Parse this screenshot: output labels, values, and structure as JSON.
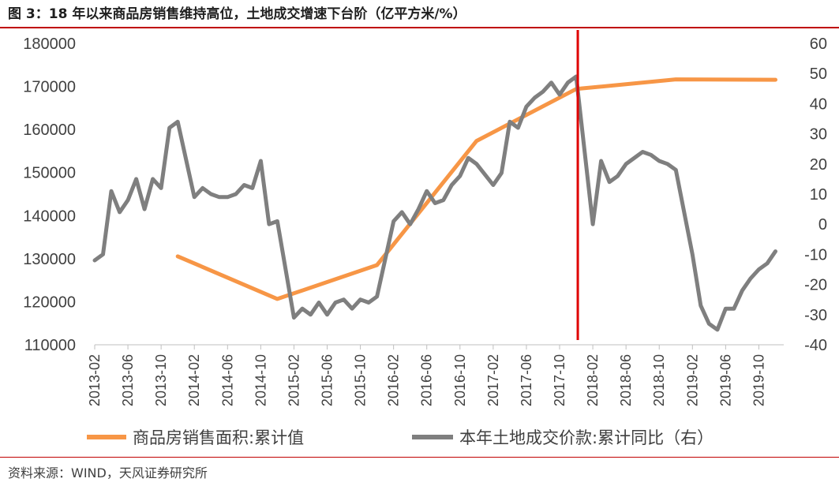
{
  "title": "图 3：18 年以来商品房销售维持高位，土地成交增速下台阶（亿平方米/%）",
  "source": "资料来源：WIND，天风证券研究所",
  "colors": {
    "area": "#f79646",
    "land": "#7f7f7f",
    "marker": "#e00000",
    "rule": "#c00000"
  },
  "chart_data": {
    "type": "line",
    "x_tick_labels": [
      "2013-02",
      "2013-06",
      "2013-10",
      "2014-02",
      "2014-06",
      "2014-10",
      "2015-02",
      "2015-06",
      "2015-10",
      "2016-02",
      "2016-06",
      "2016-10",
      "2017-02",
      "2017-06",
      "2017-10",
      "2018-02",
      "2018-06",
      "2018-10",
      "2019-02",
      "2019-06",
      "2019-10"
    ],
    "y_left": {
      "min": 110000,
      "max": 180000,
      "ticks": [
        110000,
        120000,
        130000,
        140000,
        150000,
        160000,
        170000,
        180000
      ]
    },
    "y_right": {
      "min": -40,
      "max": 60,
      "ticks": [
        60,
        50,
        40,
        30,
        20,
        10,
        0,
        -10,
        -20,
        -30,
        -40
      ]
    },
    "vertical_marker": "2017-12",
    "series": [
      {
        "name": "商品房销售面积:累计值",
        "axis": "left",
        "points": [
          [
            "2013-12",
            130550
          ],
          [
            "2014-12",
            120650
          ],
          [
            "2015-12",
            128500
          ],
          [
            "2016-12",
            157350
          ],
          [
            "2017-12",
            169400
          ],
          [
            "2018-12",
            171650
          ],
          [
            "2019-12",
            171550
          ]
        ]
      },
      {
        "name": "本年土地成交价款:累计同比（右）",
        "axis": "right",
        "points": [
          [
            "2013-02",
            -12
          ],
          [
            "2013-03",
            -10
          ],
          [
            "2013-04",
            11
          ],
          [
            "2013-05",
            4
          ],
          [
            "2013-06",
            8
          ],
          [
            "2013-07",
            15
          ],
          [
            "2013-08",
            5
          ],
          [
            "2013-09",
            15
          ],
          [
            "2013-10",
            12
          ],
          [
            "2013-11",
            32
          ],
          [
            "2013-12",
            34
          ],
          [
            "2014-02",
            9
          ],
          [
            "2014-03",
            12
          ],
          [
            "2014-04",
            10
          ],
          [
            "2014-05",
            9
          ],
          [
            "2014-06",
            9
          ],
          [
            "2014-07",
            10
          ],
          [
            "2014-08",
            13
          ],
          [
            "2014-09",
            12
          ],
          [
            "2014-10",
            21
          ],
          [
            "2014-11",
            0
          ],
          [
            "2014-12",
            1
          ],
          [
            "2015-02",
            -31
          ],
          [
            "2015-03",
            -28
          ],
          [
            "2015-04",
            -30
          ],
          [
            "2015-05",
            -26
          ],
          [
            "2015-06",
            -30
          ],
          [
            "2015-07",
            -26
          ],
          [
            "2015-08",
            -25
          ],
          [
            "2015-09",
            -28
          ],
          [
            "2015-10",
            -25
          ],
          [
            "2015-11",
            -26
          ],
          [
            "2015-12",
            -24
          ],
          [
            "2016-02",
            1
          ],
          [
            "2016-03",
            4
          ],
          [
            "2016-04",
            0
          ],
          [
            "2016-05",
            5
          ],
          [
            "2016-06",
            11
          ],
          [
            "2016-07",
            7
          ],
          [
            "2016-08",
            8
          ],
          [
            "2016-09",
            13
          ],
          [
            "2016-10",
            16
          ],
          [
            "2016-11",
            22
          ],
          [
            "2016-12",
            20
          ],
          [
            "2017-02",
            13
          ],
          [
            "2017-03",
            17
          ],
          [
            "2017-04",
            34
          ],
          [
            "2017-05",
            32
          ],
          [
            "2017-06",
            39
          ],
          [
            "2017-07",
            42
          ],
          [
            "2017-08",
            44
          ],
          [
            "2017-09",
            47
          ],
          [
            "2017-10",
            43
          ],
          [
            "2017-11",
            47
          ],
          [
            "2017-12",
            49
          ],
          [
            "2018-02",
            0
          ],
          [
            "2018-03",
            21
          ],
          [
            "2018-04",
            14
          ],
          [
            "2018-05",
            16
          ],
          [
            "2018-06",
            20
          ],
          [
            "2018-07",
            22
          ],
          [
            "2018-08",
            24
          ],
          [
            "2018-09",
            23
          ],
          [
            "2018-10",
            21
          ],
          [
            "2018-11",
            20
          ],
          [
            "2018-12",
            18
          ],
          [
            "2019-02",
            -10
          ],
          [
            "2019-03",
            -27
          ],
          [
            "2019-04",
            -33
          ],
          [
            "2019-05",
            -35
          ],
          [
            "2019-06",
            -28
          ],
          [
            "2019-07",
            -28
          ],
          [
            "2019-08",
            -22
          ],
          [
            "2019-09",
            -18
          ],
          [
            "2019-10",
            -15
          ],
          [
            "2019-11",
            -13
          ],
          [
            "2019-12",
            -9
          ]
        ]
      }
    ]
  }
}
